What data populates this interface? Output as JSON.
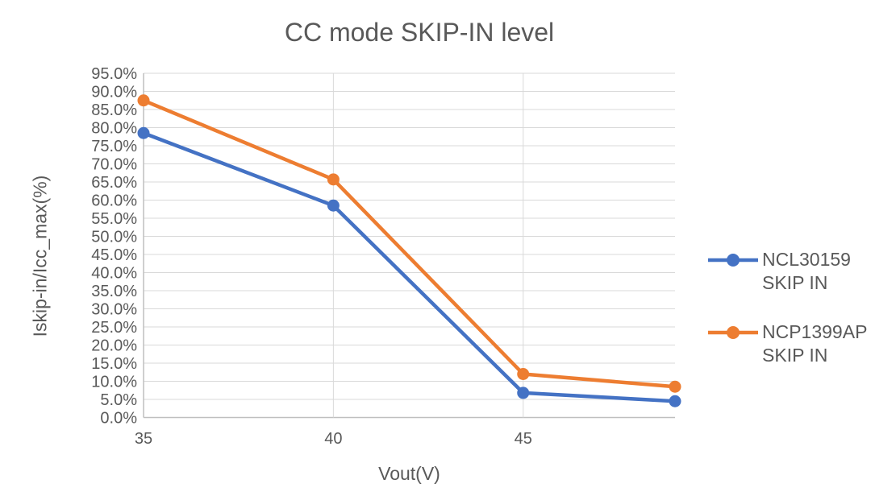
{
  "chart_data": {
    "type": "line",
    "title": "CC mode SKIP-IN level",
    "xlabel": "Vout(V)",
    "ylabel": "Iskip-in/Icc_max(%)",
    "x": [
      35,
      40,
      45,
      49
    ],
    "series": [
      {
        "name": "NCL30159 SKIP IN",
        "legend_lines": [
          "NCL30159",
          "SKIP IN"
        ],
        "color": "#4472C4",
        "values": [
          78.5,
          58.5,
          6.8,
          4.5
        ]
      },
      {
        "name": "NCP1399AP SKIP IN",
        "legend_lines": [
          "NCP1399AP",
          "SKIP IN"
        ],
        "color": "#ED7D31",
        "values": [
          87.5,
          65.7,
          12,
          8.5
        ]
      }
    ],
    "xlim": [
      35,
      49
    ],
    "ylim": [
      0,
      95
    ],
    "x_ticks": [
      35,
      40,
      45
    ],
    "y_tick_step": 5,
    "y_tick_decimals": 1,
    "y_tick_suffix": "%",
    "grid": true,
    "legend_position": "right",
    "marker": "circle"
  },
  "styles": {
    "text_color": "#595959",
    "gridline_color": "#D9D9D9",
    "axis_line_color": "#BFBFBF",
    "background": "#FFFFFF",
    "series_line_width": 4.5,
    "marker_radius": 7.5,
    "tick_font_size": 20
  }
}
